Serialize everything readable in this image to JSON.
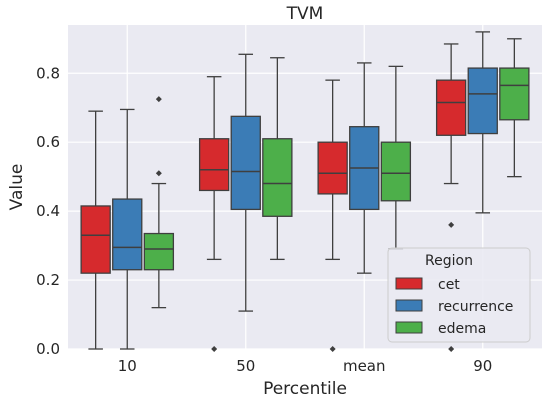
{
  "chart_data": {
    "type": "box",
    "title": "TVM",
    "xlabel": "Percentile",
    "ylabel": "Value",
    "ylim": [
      0.0,
      0.94
    ],
    "yticks": [
      0.0,
      0.2,
      0.4,
      0.6,
      0.8
    ],
    "ytick_labels": [
      "0.0",
      "0.2",
      "0.4",
      "0.6",
      "0.8"
    ],
    "categories": [
      "10",
      "50",
      "mean",
      "90"
    ],
    "grid": true,
    "background": "#eaeaf2",
    "legend": {
      "title": "Region",
      "placement": "lower-right"
    },
    "series": [
      {
        "name": "cet",
        "color": "#d62a2d",
        "boxes": [
          {
            "whislo": 0.0,
            "q1": 0.22,
            "med": 0.33,
            "q3": 0.415,
            "whishi": 0.69,
            "fliers": []
          },
          {
            "whislo": 0.26,
            "q1": 0.46,
            "med": 0.52,
            "q3": 0.61,
            "whishi": 0.79,
            "fliers": [
              0.0
            ]
          },
          {
            "whislo": 0.26,
            "q1": 0.45,
            "med": 0.51,
            "q3": 0.6,
            "whishi": 0.78,
            "fliers": [
              0.0
            ]
          },
          {
            "whislo": 0.48,
            "q1": 0.62,
            "med": 0.715,
            "q3": 0.78,
            "whishi": 0.885,
            "fliers": [
              0.36,
              0.0
            ]
          }
        ]
      },
      {
        "name": "recurrence",
        "color": "#3b7cb6",
        "boxes": [
          {
            "whislo": 0.0,
            "q1": 0.23,
            "med": 0.295,
            "q3": 0.435,
            "whishi": 0.695,
            "fliers": []
          },
          {
            "whislo": 0.11,
            "q1": 0.405,
            "med": 0.515,
            "q3": 0.675,
            "whishi": 0.855,
            "fliers": []
          },
          {
            "whislo": 0.22,
            "q1": 0.405,
            "med": 0.525,
            "q3": 0.645,
            "whishi": 0.83,
            "fliers": []
          },
          {
            "whislo": 0.395,
            "q1": 0.625,
            "med": 0.74,
            "q3": 0.815,
            "whishi": 0.92,
            "fliers": []
          }
        ]
      },
      {
        "name": "edema",
        "color": "#4daf4a",
        "boxes": [
          {
            "whislo": 0.12,
            "q1": 0.23,
            "med": 0.29,
            "q3": 0.335,
            "whishi": 0.48,
            "fliers": [
              0.51,
              0.725
            ]
          },
          {
            "whislo": 0.26,
            "q1": 0.385,
            "med": 0.48,
            "q3": 0.61,
            "whishi": 0.845,
            "fliers": []
          },
          {
            "whislo": 0.29,
            "q1": 0.43,
            "med": 0.51,
            "q3": 0.6,
            "whishi": 0.82,
            "fliers": []
          },
          {
            "whislo": 0.5,
            "q1": 0.665,
            "med": 0.765,
            "q3": 0.815,
            "whishi": 0.9,
            "fliers": []
          }
        ]
      }
    ]
  }
}
